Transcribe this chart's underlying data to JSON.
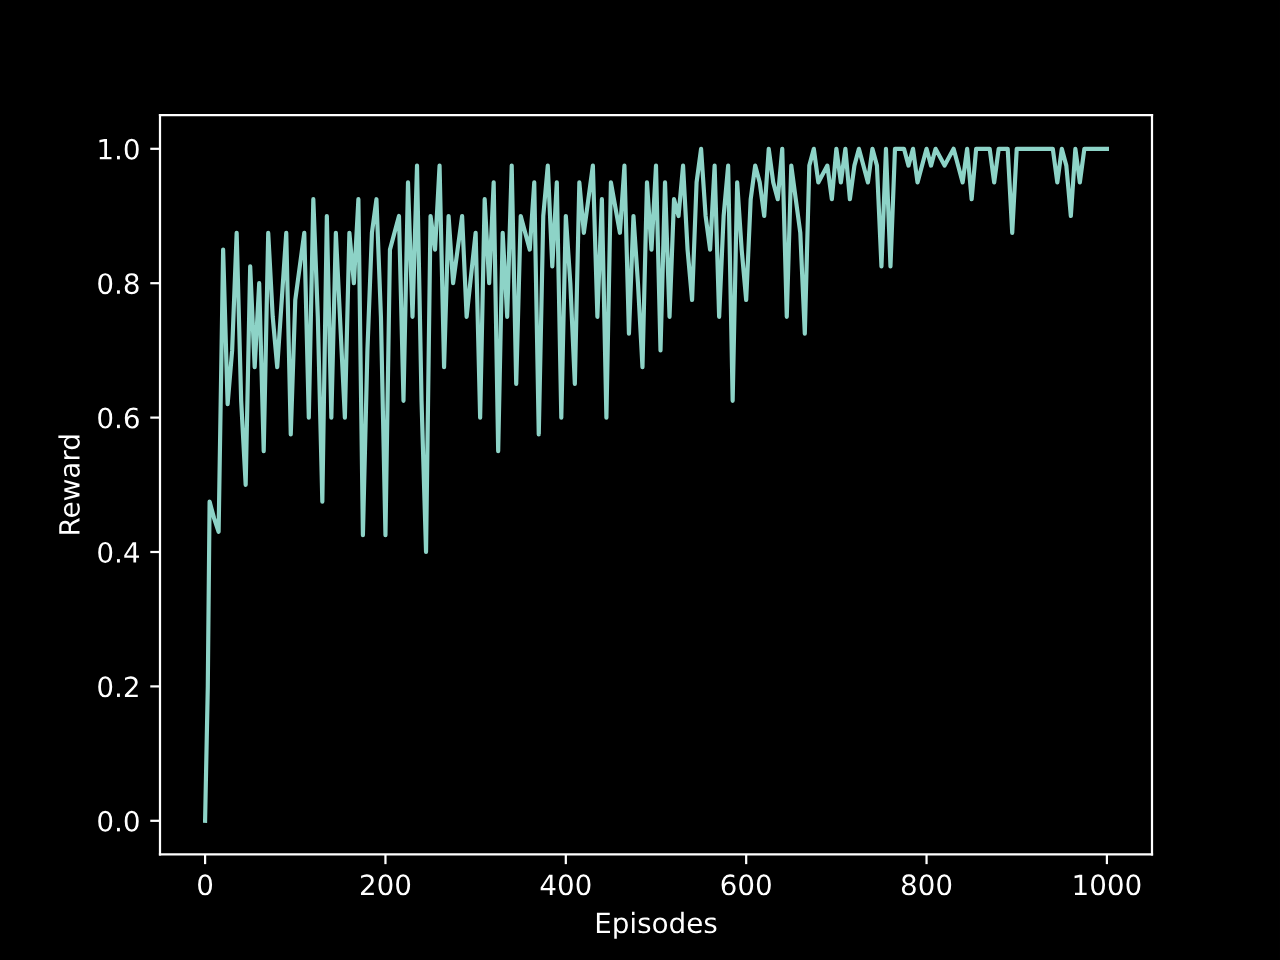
{
  "chart_data": {
    "type": "line",
    "xlabel": "Episodes",
    "ylabel": "Reward",
    "xlim": [
      -50,
      1050
    ],
    "ylim": [
      -0.05,
      1.05
    ],
    "xticks": [
      0,
      200,
      400,
      600,
      800,
      1000
    ],
    "yticks": [
      {
        "value": 0,
        "label": "0.0"
      },
      {
        "value": 0.2,
        "label": "0.2"
      },
      {
        "value": 0.4,
        "label": "0.4"
      },
      {
        "value": 0.6,
        "label": "0.6"
      },
      {
        "value": 0.8,
        "label": "0.8"
      },
      {
        "value": 1,
        "label": "1.0"
      }
    ],
    "grid": false,
    "legend": false,
    "series": [
      {
        "color": "#8dd3c7",
        "x": [
          0,
          3,
          5,
          10,
          15,
          20,
          25,
          30,
          35,
          40,
          45,
          50,
          55,
          60,
          65,
          70,
          75,
          80,
          90,
          95,
          100,
          110,
          115,
          120,
          125,
          130,
          135,
          140,
          145,
          155,
          160,
          165,
          170,
          175,
          180,
          185,
          190,
          195,
          200,
          205,
          215,
          220,
          225,
          230,
          235,
          240,
          245,
          250,
          255,
          260,
          265,
          270,
          275,
          285,
          290,
          300,
          305,
          310,
          315,
          320,
          325,
          330,
          335,
          340,
          345,
          350,
          360,
          365,
          370,
          375,
          380,
          385,
          390,
          395,
          400,
          405,
          410,
          415,
          420,
          430,
          435,
          440,
          445,
          450,
          460,
          465,
          470,
          475,
          480,
          485,
          490,
          495,
          500,
          505,
          510,
          515,
          520,
          525,
          530,
          535,
          540,
          545,
          550,
          555,
          560,
          565,
          570,
          575,
          580,
          585,
          590,
          595,
          600,
          605,
          610,
          615,
          620,
          625,
          630,
          635,
          640,
          645,
          650,
          655,
          660,
          665,
          670,
          675,
          680,
          690,
          695,
          700,
          705,
          710,
          715,
          720,
          725,
          735,
          740,
          745,
          750,
          755,
          760,
          765,
          775,
          780,
          785,
          790,
          800,
          805,
          810,
          820,
          830,
          840,
          845,
          850,
          855,
          870,
          875,
          880,
          890,
          895,
          900,
          940,
          945,
          950,
          955,
          960,
          965,
          970,
          975,
          1000
        ],
        "values": [
          0,
          0.2,
          0.475,
          0.45,
          0.43,
          0.85,
          0.62,
          0.7,
          0.875,
          0.625,
          0.5,
          0.825,
          0.675,
          0.8,
          0.55,
          0.875,
          0.75,
          0.675,
          0.875,
          0.575,
          0.775,
          0.875,
          0.6,
          0.925,
          0.75,
          0.475,
          0.9,
          0.6,
          0.875,
          0.6,
          0.875,
          0.8,
          0.925,
          0.425,
          0.7,
          0.875,
          0.925,
          0.75,
          0.425,
          0.85,
          0.9,
          0.625,
          0.95,
          0.75,
          0.975,
          0.625,
          0.4,
          0.9,
          0.85,
          0.975,
          0.675,
          0.9,
          0.8,
          0.9,
          0.75,
          0.875,
          0.6,
          0.925,
          0.8,
          0.95,
          0.55,
          0.875,
          0.75,
          0.975,
          0.65,
          0.9,
          0.85,
          0.95,
          0.575,
          0.9,
          0.975,
          0.825,
          0.95,
          0.6,
          0.9,
          0.8,
          0.65,
          0.95,
          0.875,
          0.975,
          0.75,
          0.925,
          0.6,
          0.95,
          0.875,
          0.975,
          0.725,
          0.9,
          0.8,
          0.675,
          0.95,
          0.85,
          0.975,
          0.7,
          0.95,
          0.75,
          0.925,
          0.9,
          0.975,
          0.85,
          0.775,
          0.95,
          1.0,
          0.9,
          0.85,
          0.975,
          0.75,
          0.9,
          0.975,
          0.625,
          0.95,
          0.85,
          0.775,
          0.925,
          0.975,
          0.95,
          0.9,
          1.0,
          0.95,
          0.925,
          1.0,
          0.75,
          0.975,
          0.925,
          0.875,
          0.725,
          0.975,
          1.0,
          0.95,
          0.975,
          0.925,
          1.0,
          0.95,
          1.0,
          0.925,
          0.975,
          1.0,
          0.95,
          1.0,
          0.975,
          0.825,
          1.0,
          0.825,
          1.0,
          1.0,
          0.975,
          1.0,
          0.95,
          1.0,
          0.975,
          1.0,
          0.975,
          1.0,
          0.95,
          1.0,
          0.925,
          1.0,
          1.0,
          0.95,
          1.0,
          1.0,
          0.875,
          1.0,
          1.0,
          0.95,
          1.0,
          0.975,
          0.9,
          1.0,
          0.95,
          1.0,
          1.0
        ]
      }
    ]
  }
}
